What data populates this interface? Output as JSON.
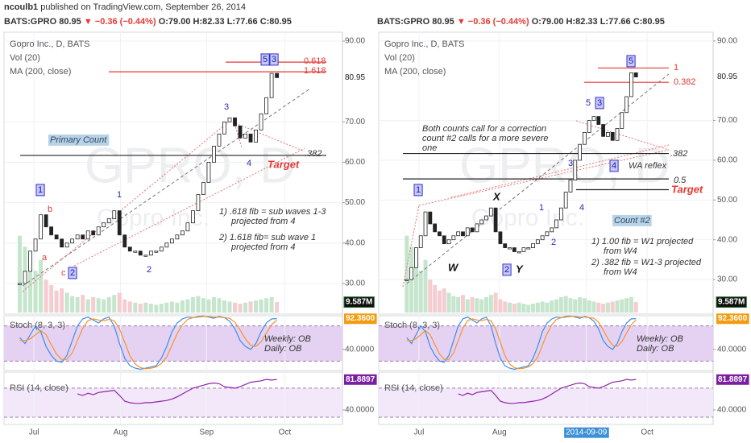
{
  "header": {
    "author": "ncoulb1",
    "published": "published on TradingView.com, September 26, 2014"
  },
  "chart_data": {
    "type": "candlestick",
    "quote": {
      "symbol": "BATS:GPRO",
      "last": "80.95",
      "change": "▼ −0.36 (−0.44%)",
      "open": "O:79.00",
      "high": "H:82.33",
      "low": "L:77.66",
      "close": "C:80.95"
    },
    "title": "Gopro Inc., D, BATS",
    "ma_label": "MA (200, close)",
    "watermark": [
      "GPRO, D",
      "Gopro Inc."
    ],
    "closes": [
      30,
      33,
      38,
      41,
      47,
      44,
      42,
      41,
      39,
      40,
      41,
      42,
      41,
      43,
      42,
      44,
      45,
      46,
      48,
      42,
      39,
      38,
      38,
      37,
      37,
      38,
      38,
      39,
      40,
      41,
      42,
      43,
      45,
      48,
      52,
      55,
      60,
      64,
      67,
      70,
      71,
      69,
      66,
      67,
      65,
      68,
      72,
      76,
      82,
      80.95
    ],
    "volume": {
      "name": "Vol (20)",
      "values": [
        70,
        60,
        45,
        38,
        48,
        30,
        25,
        20,
        22,
        18,
        15,
        14,
        16,
        12,
        14,
        13,
        12,
        14,
        16,
        18,
        12,
        10,
        9,
        8,
        9,
        8,
        7,
        8,
        9,
        10,
        9,
        11,
        12,
        14,
        15,
        13,
        12,
        14,
        13,
        11,
        10,
        9,
        8,
        9,
        10,
        11,
        12,
        13,
        14,
        9.587
      ],
      "ylim": [
        0,
        80
      ],
      "last_label": "9.587M"
    },
    "stoch": {
      "name": "Stoch (8, 3, 3)",
      "series": [
        {
          "color": "#3c8ee6",
          "values": [
            60,
            50,
            65,
            80,
            70,
            45,
            30,
            20,
            18,
            30,
            55,
            80,
            92,
            95,
            90,
            85,
            92,
            95,
            80,
            50,
            25,
            12,
            8,
            6,
            8,
            10,
            12,
            25,
            45,
            70,
            85,
            92,
            95,
            94,
            96,
            97,
            95,
            93,
            96,
            94,
            88,
            75,
            55,
            45,
            40,
            50,
            70,
            85,
            92,
            92.36
          ]
        },
        {
          "color": "#f5922f",
          "values": [
            55,
            55,
            58,
            65,
            72,
            65,
            48,
            32,
            23,
            23,
            34,
            55,
            76,
            89,
            92,
            90,
            89,
            91,
            89,
            75,
            52,
            29,
            15,
            9,
            7,
            8,
            10,
            16,
            27,
            47,
            67,
            82,
            91,
            94,
            95,
            96,
            96,
            95,
            95,
            94,
            93,
            86,
            73,
            58,
            47,
            45,
            53,
            68,
            82,
            90
          ]
        }
      ],
      "ylim": [
        4,
        97.3
      ],
      "yticks": [
        {
          "value": 40,
          "label": "40.0000"
        }
      ],
      "bands": [
        20,
        80
      ],
      "last_label": "92.3600"
    },
    "rsi": {
      "name": "RSI (14, close)",
      "color": "#8e24aa",
      "values": [
        null,
        null,
        null,
        null,
        null,
        null,
        null,
        null,
        null,
        null,
        null,
        62,
        60,
        63,
        61,
        64,
        65,
        66,
        67,
        60,
        52,
        50,
        49,
        49,
        50,
        50,
        51,
        52,
        53,
        55,
        58,
        62,
        66,
        70,
        72,
        74,
        76,
        77,
        76,
        72,
        71,
        70,
        72,
        75,
        78,
        79,
        80,
        82,
        81,
        81.8897
      ],
      "ylim": [
        20,
        92
      ],
      "yticks": [
        {
          "value": 40,
          "label": "40.0000"
        }
      ],
      "bands": [
        30,
        70
      ],
      "last_label": "81.8897"
    },
    "panels": [
      {
        "xlim": [
          -3,
          61.5
        ],
        "xticks": [
          {
            "value": 2.7,
            "label": "Jul"
          },
          {
            "value": 19.2,
            "label": "Aug"
          },
          {
            "value": 35.6,
            "label": "Sep"
          },
          {
            "value": 50.5,
            "label": "Oct"
          }
        ],
        "ylim": [
          22.4,
          92.2
        ],
        "yticks": [
          {
            "value": 30,
            "label": "30.00"
          },
          {
            "value": 40,
            "label": "40.00"
          },
          {
            "value": 50,
            "label": "50.00"
          },
          {
            "value": 60,
            "label": "60.00"
          },
          {
            "value": 70,
            "label": "70.00"
          },
          {
            "value": 90,
            "label": "90.00"
          }
        ],
        "levels": [
          {
            "value": 84.8,
            "color": "#e53935"
          },
          {
            "value": 82.4,
            "color": "#e53935"
          },
          {
            "value": 61.7,
            "color": "#222222"
          }
        ],
        "annotations": [
          "5",
          "3",
          "0.618",
          "1.618",
          "3",
          "Primary Count",
          "Target",
          ".382",
          "4",
          "1",
          "b",
          "a",
          "c",
          "2",
          "1",
          "2",
          "1) .618 fib = sub waves 1-3",
          "projected from 4",
          "2) 1.618 fib= sub wave 1",
          "projected from 4",
          "Weekly: OB",
          "Daily: OB"
        ]
      },
      {
        "xlim": [
          -6,
          65.5
        ],
        "xticks": [
          {
            "value": 2.6,
            "label": "Jul"
          },
          {
            "value": 19.8,
            "label": "Aug"
          },
          {
            "value": 38.4,
            "label": "2014-09-09"
          },
          {
            "value": 51.4,
            "label": "Oct"
          }
        ],
        "crosshair_tick": 2,
        "ylim": [
          21.3,
          92.2
        ],
        "yticks": [
          {
            "value": 30,
            "label": "30.00"
          },
          {
            "value": 40,
            "label": "40.00"
          },
          {
            "value": 50,
            "label": "50.00"
          },
          {
            "value": 60,
            "label": "60.00"
          },
          {
            "value": 70,
            "label": "70.00"
          },
          {
            "value": 90,
            "label": "90.00"
          }
        ],
        "levels": [
          {
            "value": 83.2,
            "color": "#e53935"
          },
          {
            "value": 79.6,
            "color": "#e53935"
          },
          {
            "value": 61.7,
            "color": "#222222"
          },
          {
            "value": 55.3,
            "color": "#222222"
          },
          {
            "value": 52.6,
            "color": "#222222"
          }
        ],
        "annotations": [
          "5",
          "1",
          "0.382",
          "5",
          "3",
          "Both counts call for a correction",
          "count #2 calls for a more severe",
          "one",
          ".382",
          "3",
          "4",
          "WA reflex",
          "0.5",
          "Target",
          "X",
          "1",
          "1",
          "4",
          "Count #2",
          "2",
          "1) 1.00 fib = W1 projected",
          "from W4",
          "2) .382 fib = W1-3 projected",
          "from W4",
          "W",
          "2",
          "Y",
          "Weekly: OB",
          "Daily: OB"
        ]
      }
    ]
  }
}
